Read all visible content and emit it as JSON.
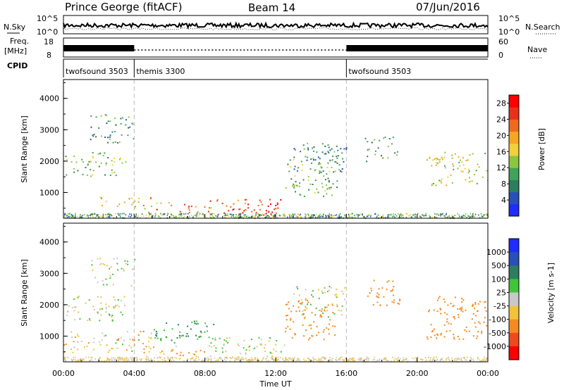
{
  "header": {
    "station": "Prince George (fitACF)",
    "beam": "Beam 14",
    "date": "07/Jun/2016"
  },
  "panels": {
    "nsky": {
      "label": "N.Sky",
      "ticks": [
        "10^5",
        "10^0"
      ],
      "right_label": "N.Search",
      "right_ticks": [
        "10^5",
        "10^0"
      ]
    },
    "freq": {
      "label_top": "Freq.",
      "label_bottom": "[MHz]",
      "ticks": [
        "18",
        "8"
      ],
      "right_label": "Nave",
      "right_ticks": [
        "60",
        "0"
      ]
    },
    "cpid": {
      "label": "CPID",
      "segments": [
        {
          "name": "twofsound 3503",
          "start_hour": 0,
          "end_hour": 4
        },
        {
          "name": "themis 3300",
          "start_hour": 4,
          "end_hour": 16
        },
        {
          "name": "twofsound 3503",
          "start_hour": 16,
          "end_hour": 24
        }
      ]
    }
  },
  "chart_data": [
    {
      "type": "heatmap",
      "quantity": "power",
      "ylabel": "Slant Range [km]",
      "ylim": [
        180,
        4600
      ],
      "yticks": [
        "1000",
        "2000",
        "3000",
        "4000"
      ],
      "colorbar": {
        "label": "Power [dB]",
        "range": [
          0,
          30
        ],
        "ticks": [
          "4",
          "8",
          "12",
          "16",
          "20",
          "24",
          "28"
        ],
        "colors": [
          "#1f2bff",
          "#2a4fb8",
          "#2e7d5e",
          "#3fa35a",
          "#8cc63f",
          "#f2d13a",
          "#f5a623",
          "#ee6a1f",
          "#e8311c",
          "#ff0000"
        ]
      },
      "echo_regions": [
        {
          "t": [
            0.0,
            3.5
          ],
          "r": [
            1500,
            2300
          ],
          "level": 12
        },
        {
          "t": [
            1.5,
            4.0
          ],
          "r": [
            2600,
            3500
          ],
          "level": 10
        },
        {
          "t": [
            2.0,
            5.0
          ],
          "r": [
            500,
            900
          ],
          "level": 18
        },
        {
          "t": [
            4.5,
            8.0
          ],
          "r": [
            350,
            700
          ],
          "level": 22
        },
        {
          "t": [
            8.0,
            12.5
          ],
          "r": [
            300,
            800
          ],
          "level": 24
        },
        {
          "t": [
            9.0,
            12.0
          ],
          "r": [
            200,
            500
          ],
          "level": 28
        },
        {
          "t": [
            12.5,
            15.5
          ],
          "r": [
            900,
            2200
          ],
          "level": 12
        },
        {
          "t": [
            13.0,
            16.0
          ],
          "r": [
            1600,
            2600
          ],
          "level": 8
        },
        {
          "t": [
            17.0,
            19.0
          ],
          "r": [
            2000,
            2800
          ],
          "level": 10
        },
        {
          "t": [
            20.5,
            24.0
          ],
          "r": [
            1200,
            2300
          ],
          "level": 16
        }
      ]
    },
    {
      "type": "heatmap",
      "quantity": "velocity",
      "ylabel": "Slant Range [km]",
      "xlabel": "Time UT",
      "xticks": [
        "00:00",
        "04:00",
        "08:00",
        "12:00",
        "16:00",
        "20:00",
        "00:00"
      ],
      "ylim": [
        180,
        4600
      ],
      "yticks": [
        "1000",
        "2000",
        "3000",
        "4000"
      ],
      "colorbar": {
        "label": "Velocity [m s-1]",
        "ticks": [
          "1000",
          "500",
          "100",
          "25",
          "-25",
          "-100",
          "-500",
          "-1000"
        ],
        "colors": [
          "#1f2bff",
          "#2a4fb8",
          "#2e7d5e",
          "#3fc43a",
          "#c8c8c8",
          "#f2c33a",
          "#f58a23",
          "#ee4a1f",
          "#ff0000"
        ]
      },
      "echo_regions": [
        {
          "t": [
            0.0,
            3.5
          ],
          "r": [
            1500,
            2300
          ],
          "level": 0
        },
        {
          "t": [
            1.5,
            4.0
          ],
          "r": [
            2600,
            3500
          ],
          "level": 0
        },
        {
          "t": [
            0.0,
            5.0
          ],
          "r": [
            500,
            1200
          ],
          "level": -60
        },
        {
          "t": [
            4.5,
            8.0
          ],
          "r": [
            350,
            700
          ],
          "level": -100
        },
        {
          "t": [
            5.0,
            8.5
          ],
          "r": [
            800,
            1500
          ],
          "level": 120
        },
        {
          "t": [
            8.0,
            12.5
          ],
          "r": [
            250,
            1000
          ],
          "level": 0
        },
        {
          "t": [
            12.5,
            15.5
          ],
          "r": [
            900,
            2200
          ],
          "level": -300
        },
        {
          "t": [
            13.0,
            16.0
          ],
          "r": [
            1600,
            2600
          ],
          "level": 0
        },
        {
          "t": [
            17.0,
            19.0
          ],
          "r": [
            2000,
            2800
          ],
          "level": -400
        },
        {
          "t": [
            20.5,
            24.0
          ],
          "r": [
            900,
            2300
          ],
          "level": -350
        }
      ]
    }
  ]
}
